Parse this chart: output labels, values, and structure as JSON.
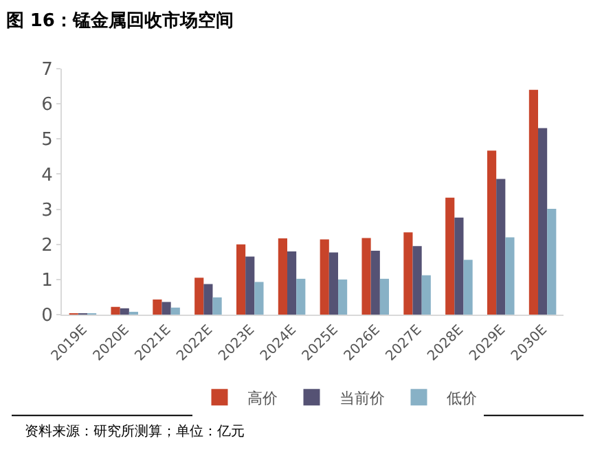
{
  "chart_data": {
    "type": "bar",
    "title": "图 16：锰金属回收市场空间",
    "categories": [
      "2019E",
      "2020E",
      "2021E",
      "2022E",
      "2023E",
      "2024E",
      "2025E",
      "2026E",
      "2027E",
      "2028E",
      "2029E",
      "2030E"
    ],
    "series": [
      {
        "name": "高价",
        "color": "#c8442a",
        "values": [
          0.03,
          0.22,
          0.43,
          1.05,
          2.0,
          2.17,
          2.14,
          2.18,
          2.34,
          3.33,
          4.67,
          6.4
        ]
      },
      {
        "name": "当前价",
        "color": "#555274",
        "values": [
          0.03,
          0.18,
          0.36,
          0.87,
          1.65,
          1.8,
          1.77,
          1.82,
          1.95,
          2.76,
          3.86,
          5.31
        ]
      },
      {
        "name": "低价",
        "color": "#88b1c6",
        "values": [
          0.02,
          0.08,
          0.2,
          0.49,
          0.93,
          1.02,
          1.0,
          1.02,
          1.12,
          1.56,
          2.2,
          3.01
        ]
      }
    ],
    "ylim": [
      0,
      7
    ],
    "yticks": [
      0,
      1,
      2,
      3,
      4,
      5,
      6,
      7
    ],
    "legend": "bottom",
    "annotations": [
      "资料来源：研究所测算；单位：亿元"
    ]
  }
}
